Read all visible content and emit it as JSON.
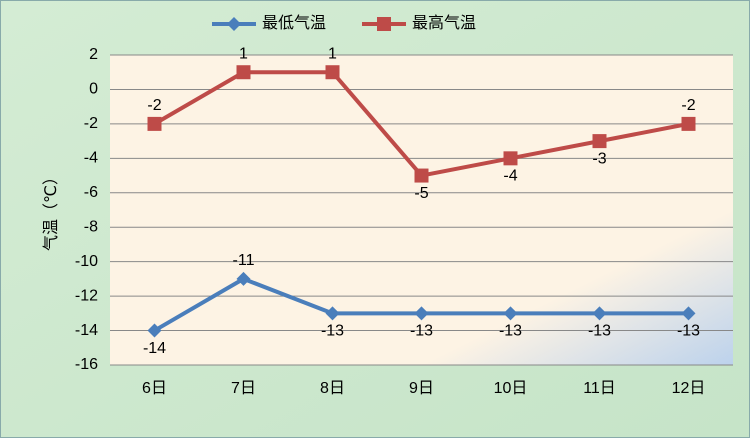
{
  "chart_data": {
    "type": "line",
    "y_label": "气温（℃）",
    "categories": [
      "6日",
      "7日",
      "8日",
      "9日",
      "10日",
      "11日",
      "12日"
    ],
    "series": [
      {
        "name": "最低气温",
        "color": "#4a7ebb",
        "marker": "diamond",
        "values": [
          -14,
          -11,
          -13,
          -13,
          -13,
          -13,
          -13
        ]
      },
      {
        "name": "最高气温",
        "color": "#be4b48",
        "marker": "square",
        "values": [
          -2,
          1,
          1,
          -5,
          -4,
          -3,
          -2
        ]
      }
    ],
    "ylim": [
      -16,
      2
    ],
    "yticks": [
      2,
      0,
      -2,
      -4,
      -6,
      -8,
      -10,
      -12,
      -14,
      -16
    ],
    "grid": true,
    "legend": "top"
  }
}
